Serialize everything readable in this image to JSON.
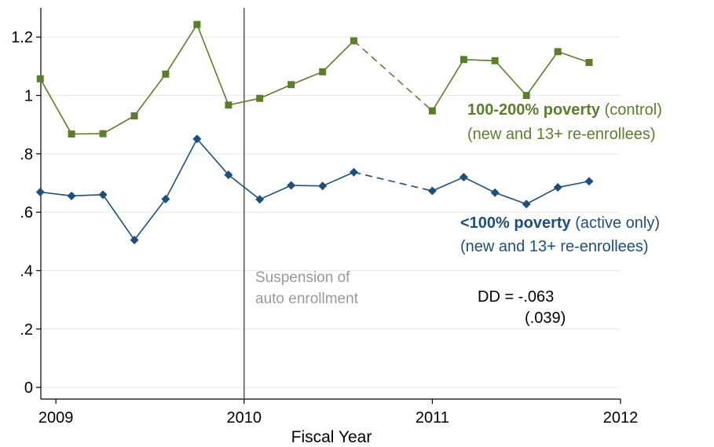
{
  "chart_data": {
    "type": "line",
    "xlabel": "Fiscal Year",
    "ylabel": "",
    "xlim": [
      2008.92,
      2012.0
    ],
    "ylim": [
      -0.04,
      1.3
    ],
    "xticks": [
      2009,
      2010,
      2011,
      2012
    ],
    "xtick_labels": [
      "2009",
      "2010",
      "2011",
      "2012"
    ],
    "yticks": [
      0,
      0.2,
      0.4,
      0.6,
      0.8,
      1.0,
      1.2
    ],
    "ytick_labels": [
      "0",
      ".2",
      ".4",
      ".6",
      ".8",
      "1",
      "1.2"
    ],
    "grid": true,
    "vline": {
      "x": 2010,
      "label_line1": "Suspension of",
      "label_line2": "auto enrollment"
    },
    "series": [
      {
        "key": "control",
        "color": "#5b7e2e",
        "marker": "square",
        "label_bold": "100-200% poverty",
        "label_rest": " (control)",
        "label_line2": "(new and 13+ re-enrollees)",
        "x": [
          2008.917,
          2009.083,
          2009.25,
          2009.417,
          2009.583,
          2009.75,
          2009.917,
          2010.083,
          2010.25,
          2010.417,
          2010.583,
          2011.0,
          2011.167,
          2011.333,
          2011.5,
          2011.667,
          2011.833
        ],
        "y": [
          1.057,
          0.868,
          0.869,
          0.93,
          1.073,
          1.243,
          0.967,
          0.99,
          1.037,
          1.081,
          1.187,
          0.947,
          1.123,
          1.119,
          1.0,
          1.15,
          1.113
        ],
        "dashed_segments": [
          [
            10,
            11
          ]
        ]
      },
      {
        "key": "treated",
        "color": "#1f4e79",
        "marker": "diamond",
        "label_bold": "<100% poverty",
        "label_rest": " (active only)",
        "label_line2": "(new and 13+ re-enrollees)",
        "x": [
          2008.917,
          2009.083,
          2009.25,
          2009.417,
          2009.583,
          2009.75,
          2009.917,
          2010.083,
          2010.25,
          2010.417,
          2010.583,
          2011.0,
          2011.167,
          2011.333,
          2011.5,
          2011.667,
          2011.833
        ],
        "y": [
          0.669,
          0.656,
          0.66,
          0.505,
          0.645,
          0.851,
          0.728,
          0.644,
          0.692,
          0.69,
          0.737,
          0.673,
          0.72,
          0.667,
          0.628,
          0.685,
          0.706
        ],
        "dashed_segments": [
          [
            10,
            11
          ]
        ]
      }
    ],
    "dd_label": "DD = -.063",
    "dd_se": "(.039)"
  }
}
